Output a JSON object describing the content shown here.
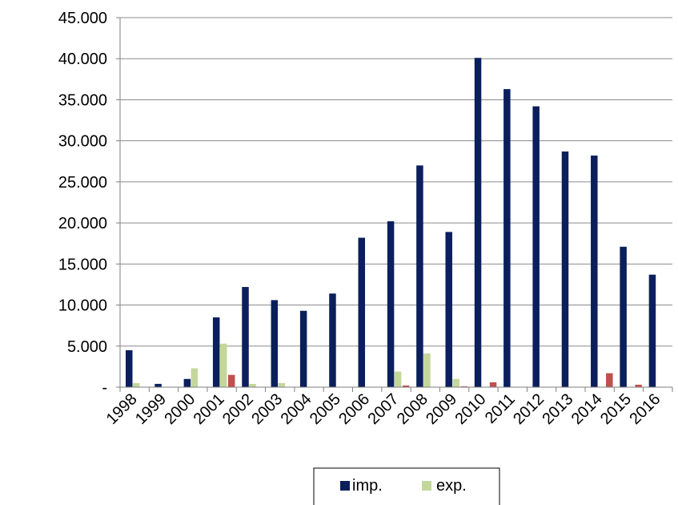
{
  "chart_data": {
    "type": "bar",
    "categories": [
      "1998",
      "1999",
      "2000",
      "2001",
      "2002",
      "2003",
      "2004",
      "2005",
      "2006",
      "2007",
      "2008",
      "2009",
      "2010",
      "2011",
      "2012",
      "2013",
      "2014",
      "2015",
      "2016"
    ],
    "series": [
      {
        "name": "imp.",
        "color": "#0b1f5c",
        "values": [
          4500,
          400,
          1000,
          8500,
          12200,
          10600,
          9300,
          11400,
          18200,
          20200,
          27000,
          18900,
          40100,
          36300,
          34200,
          28700,
          28200,
          17100,
          13700
        ]
      },
      {
        "name": "exp.",
        "color": "#c4d79b",
        "values": [
          500,
          0,
          2300,
          5300,
          400,
          500,
          0,
          0,
          0,
          1900,
          4100,
          1000,
          0,
          0,
          0,
          0,
          0,
          0,
          0
        ]
      },
      {
        "color": "#c0504d",
        "values": [
          0,
          0,
          0,
          1500,
          0,
          0,
          0,
          0,
          0,
          200,
          0,
          100,
          600,
          0,
          0,
          0,
          1700,
          300,
          0
        ]
      }
    ],
    "y_ticks": [
      {
        "value": 0,
        "label": "-"
      },
      {
        "value": 5000,
        "label": "5.000"
      },
      {
        "value": 10000,
        "label": "10.000"
      },
      {
        "value": 15000,
        "label": "15.000"
      },
      {
        "value": 20000,
        "label": "20.000"
      },
      {
        "value": 25000,
        "label": "25.000"
      },
      {
        "value": 30000,
        "label": "30.000"
      },
      {
        "value": 35000,
        "label": "35.000"
      },
      {
        "value": 40000,
        "label": "40.000"
      },
      {
        "value": 45000,
        "label": "45.000"
      }
    ],
    "ylim": [
      0,
      45000
    ],
    "grid": true,
    "legend": {
      "placement": "bottom-center",
      "entries": [
        "imp.",
        "exp."
      ]
    }
  }
}
